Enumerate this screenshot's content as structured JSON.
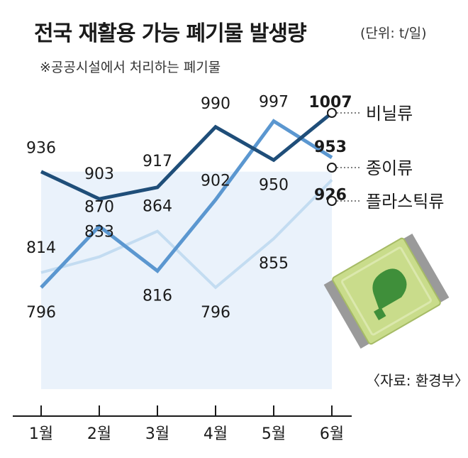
{
  "header": {
    "title": "전국 재활용 가능 폐기물 발생량",
    "unit": "(단위: t/일)",
    "subtitle": "※공공시설에서 처리하는 폐기물"
  },
  "source": "〈자료: 환경부〉",
  "chart_data": {
    "type": "line",
    "title": "전국 재활용 가능 폐기물 발생량",
    "categories": [
      "1월",
      "2월",
      "3월",
      "4월",
      "5월",
      "6월"
    ],
    "series": [
      {
        "name": "비닐류",
        "values": [
          936,
          903,
          917,
          990,
          950,
          1007
        ],
        "color": "#1f4e79"
      },
      {
        "name": "종이류",
        "values": [
          796,
          870,
          816,
          902,
          997,
          953
        ],
        "color": "#5b97d0"
      },
      {
        "name": "플라스틱류",
        "values": [
          814,
          833,
          864,
          796,
          855,
          926
        ],
        "color": "#c3dcf1"
      }
    ],
    "ylim": [
      740,
      1040
    ],
    "grid": false,
    "legend": "right, at line ends",
    "value_labels": true,
    "highlight_last": true
  },
  "illustration": {
    "name": "packaging-pouch",
    "colors": [
      "#c9dc8b",
      "#3f8f3a",
      "#8a8a8a"
    ]
  }
}
